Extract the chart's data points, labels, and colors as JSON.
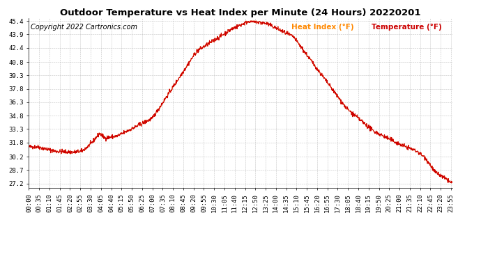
{
  "title": "Outdoor Temperature vs Heat Index per Minute (24 Hours) 20220201",
  "copyright_text": "Copyright 2022 Cartronics.com",
  "legend_heat_index": "Heat Index (°F)",
  "legend_temperature": "Temperature (°F)",
  "heat_index_color": "#ff6600",
  "temperature_color": "#cc0000",
  "legend_color_heat": "#ff8800",
  "legend_color_temp": "#cc0000",
  "background_color": "#ffffff",
  "grid_color": "#aaaaaa",
  "yticks": [
    27.2,
    28.7,
    30.2,
    31.8,
    33.3,
    34.8,
    36.3,
    37.8,
    39.3,
    40.8,
    42.4,
    43.9,
    45.4
  ],
  "ylim_min": 27.2,
  "ylim_max": 45.4,
  "title_fontsize": 9.5,
  "copyright_fontsize": 7,
  "tick_fontsize": 6.5,
  "legend_fontsize": 7.5,
  "line_width": 0.7
}
